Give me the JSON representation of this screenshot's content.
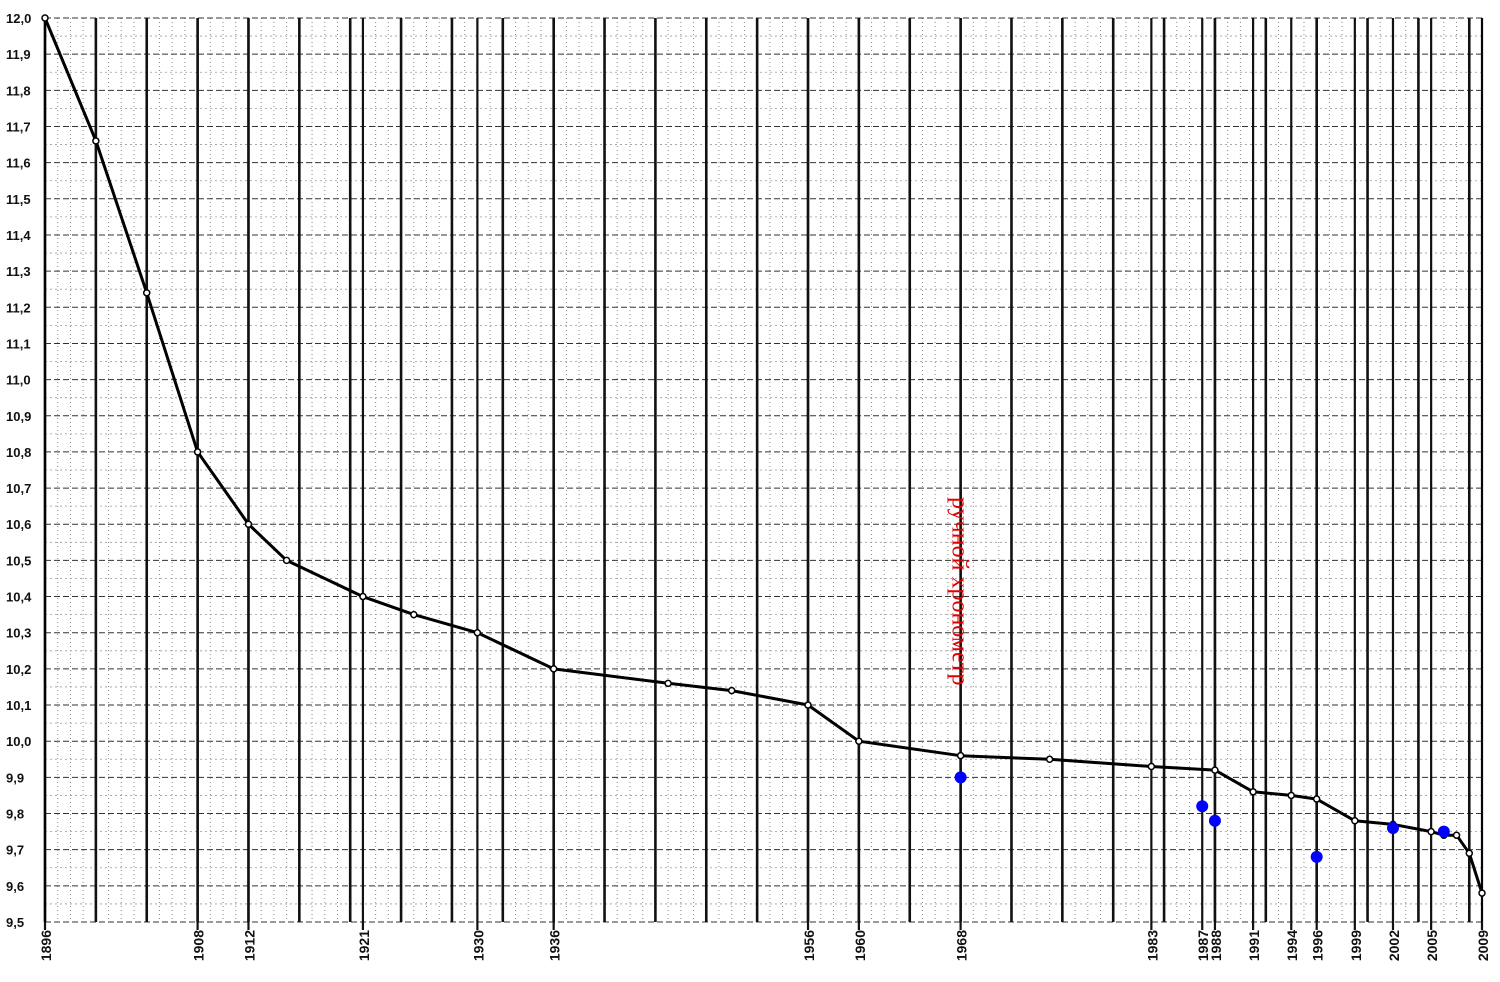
{
  "chart_data": {
    "type": "line",
    "title": "",
    "xlabel": "",
    "ylabel": "",
    "xlim": [
      1896,
      2009
    ],
    "ylim": [
      9.5,
      12.0
    ],
    "grid": true,
    "y_ticks": [
      "12,0",
      "11,9",
      "11,8",
      "11,7",
      "11,6",
      "11,5",
      "11,4",
      "11,3",
      "11,2",
      "11,1",
      "11,0",
      "10,9",
      "10,8",
      "10,7",
      "10,6",
      "10,5",
      "10,4",
      "10,3",
      "10,2",
      "10,1",
      "10,0",
      "9,9",
      "9,8",
      "9,7",
      "9,6",
      "9,5"
    ],
    "x_ticks": [
      "1896",
      "1908",
      "1912",
      "1921",
      "1930",
      "1936",
      "1956",
      "1960",
      "1968",
      "1983",
      "1987",
      "1988",
      "1991",
      "1994",
      "1996",
      "1999",
      "2002",
      "2005",
      "2009"
    ],
    "series": [
      {
        "name": "",
        "color": "#000000",
        "x": [
          1896,
          1900,
          1904,
          1908,
          1912,
          1915,
          1921,
          1925,
          1930,
          1936,
          1945,
          1950,
          1956,
          1960,
          1968,
          1975,
          1983,
          1988,
          1991,
          1994,
          1996,
          1999,
          2002,
          2005,
          2006,
          2007,
          2008,
          2009
        ],
        "values": [
          12.0,
          11.66,
          11.24,
          10.8,
          10.6,
          10.5,
          10.4,
          10.35,
          10.3,
          10.2,
          10.16,
          10.14,
          10.1,
          10.0,
          9.96,
          9.95,
          9.93,
          9.92,
          9.86,
          9.85,
          9.84,
          9.78,
          9.77,
          9.75,
          9.74,
          9.74,
          9.69,
          9.58
        ]
      },
      {
        "name": "",
        "color": "#0000ff",
        "x": [
          1968,
          1987,
          1988,
          1996,
          2002,
          2006
        ],
        "values": [
          9.9,
          9.82,
          9.78,
          9.68,
          9.76,
          9.75
        ]
      }
    ],
    "annotations": [
      {
        "text": "ручной хронометр",
        "x": 1968,
        "color": "#e10000"
      }
    ]
  }
}
